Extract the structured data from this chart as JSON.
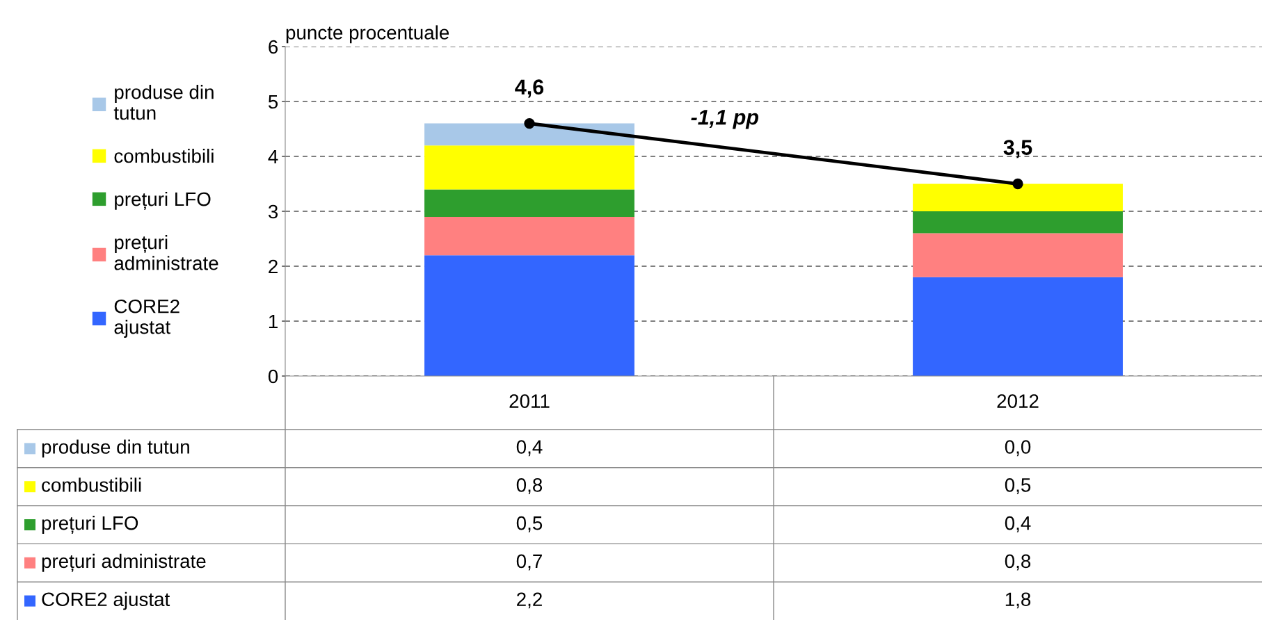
{
  "chart_data": {
    "type": "bar",
    "stacked": true,
    "ylabel": "puncte procentuale",
    "categories": [
      "2011",
      "2012"
    ],
    "series": [
      {
        "name": "CORE2 ajustat",
        "color": "#3366ff",
        "values": [
          2.2,
          1.8
        ],
        "value_labels": [
          "2,2",
          "1,8"
        ]
      },
      {
        "name": "prețuri administrate",
        "color": "#ff8080",
        "values": [
          0.7,
          0.8
        ],
        "value_labels": [
          "0,7",
          "0,8"
        ]
      },
      {
        "name": "prețuri LFO",
        "color": "#2e9e2e",
        "values": [
          0.5,
          0.4
        ],
        "value_labels": [
          "0,5",
          "0,4"
        ]
      },
      {
        "name": "combustibili",
        "color": "#ffff00",
        "values": [
          0.8,
          0.5
        ],
        "value_labels": [
          "0,8",
          "0,5"
        ]
      },
      {
        "name": "produse din tutun",
        "color": "#a8c8e8",
        "values": [
          0.4,
          0.0
        ],
        "value_labels": [
          "0,4",
          "0,0"
        ]
      },
      {
        "type": "line",
        "color": "#000000",
        "values": [
          4.6,
          3.5
        ],
        "marker": "circle"
      }
    ],
    "totals": [
      "4,6",
      "3,5"
    ],
    "annotations": [
      "-1,1 pp"
    ],
    "ylim": [
      0,
      6
    ],
    "yticks": [
      0,
      1,
      2,
      3,
      4,
      5,
      6
    ],
    "grid": "y",
    "legend": "left"
  }
}
